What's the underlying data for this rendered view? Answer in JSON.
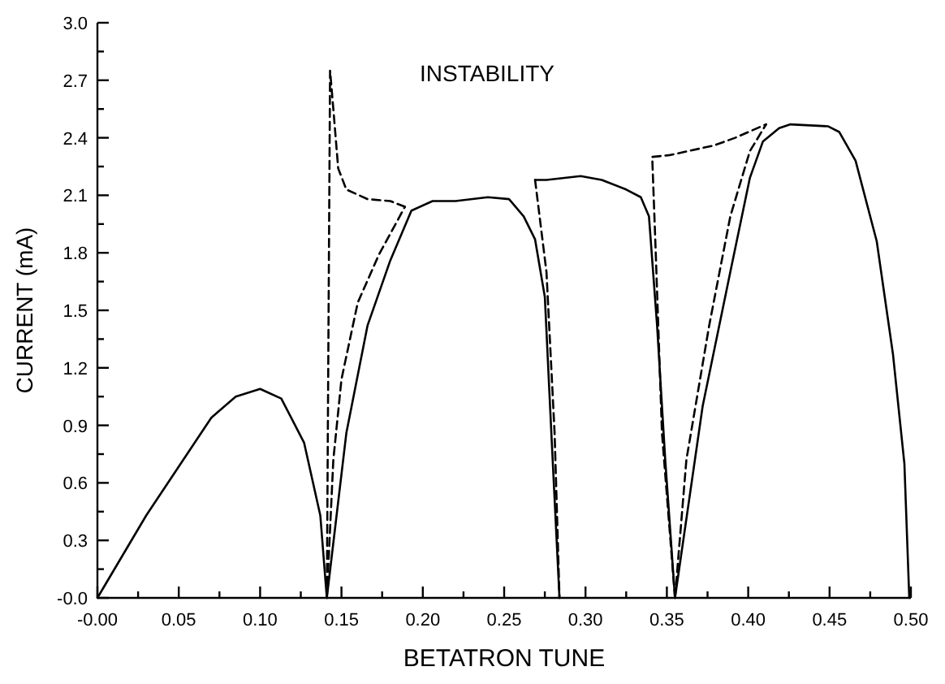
{
  "chart_data": {
    "type": "line",
    "title": "INSTABILITY",
    "xlabel": "BETATRON TUNE",
    "ylabel": "CURRENT (mA)",
    "xlim": [
      0,
      0.5
    ],
    "ylim": [
      0,
      3
    ],
    "xticks": [
      {
        "value": 0,
        "label": "-0.00"
      },
      {
        "value": 0.025,
        "label": null
      },
      {
        "value": 0.05,
        "label": "0.05"
      },
      {
        "value": 0.075,
        "label": null
      },
      {
        "value": 0.1,
        "label": "0.10"
      },
      {
        "value": 0.125,
        "label": null
      },
      {
        "value": 0.15,
        "label": "0.15"
      },
      {
        "value": 0.175,
        "label": null
      },
      {
        "value": 0.2,
        "label": "0.20"
      },
      {
        "value": 0.225,
        "label": null
      },
      {
        "value": 0.25,
        "label": "0.25"
      },
      {
        "value": 0.275,
        "label": null
      },
      {
        "value": 0.3,
        "label": "0.30"
      },
      {
        "value": 0.325,
        "label": null
      },
      {
        "value": 0.35,
        "label": "0.35"
      },
      {
        "value": 0.375,
        "label": null
      },
      {
        "value": 0.4,
        "label": "0.40"
      },
      {
        "value": 0.425,
        "label": null
      },
      {
        "value": 0.45,
        "label": "0.45"
      },
      {
        "value": 0.475,
        "label": null
      },
      {
        "value": 0.5,
        "label": "0.50"
      }
    ],
    "yticks": [
      {
        "value": 0,
        "label": "-0.0"
      },
      {
        "value": 0.15,
        "label": null
      },
      {
        "value": 0.3,
        "label": "0.3"
      },
      {
        "value": 0.45,
        "label": null
      },
      {
        "value": 0.6,
        "label": "0.6"
      },
      {
        "value": 0.75,
        "label": null
      },
      {
        "value": 0.9,
        "label": "0.9"
      },
      {
        "value": 1.05,
        "label": null
      },
      {
        "value": 1.2,
        "label": "1.2"
      },
      {
        "value": 1.35,
        "label": null
      },
      {
        "value": 1.5,
        "label": "1.5"
      },
      {
        "value": 1.65,
        "label": null
      },
      {
        "value": 1.8,
        "label": "1.8"
      },
      {
        "value": 1.95,
        "label": null
      },
      {
        "value": 2.1,
        "label": "2.1"
      },
      {
        "value": 2.25,
        "label": null
      },
      {
        "value": 2.4,
        "label": "2.4"
      },
      {
        "value": 2.55,
        "label": null
      },
      {
        "value": 2.7,
        "label": "2.7"
      },
      {
        "value": 2.85,
        "label": null
      },
      {
        "value": 3,
        "label": "3.0"
      }
    ],
    "series": [
      {
        "color": "#000000",
        "line_style": "solid",
        "x": [
          0,
          0.03,
          0.07,
          0.085,
          0.1,
          0.113,
          0.127,
          0.137,
          0.141,
          0.153,
          0.166,
          0.18,
          0.193,
          0.206,
          0.22,
          0.24,
          0.253,
          0.262,
          0.269,
          0.275,
          0.279,
          0.284
        ],
        "values": [
          0,
          0.43,
          0.94,
          1.05,
          1.09,
          1.04,
          0.81,
          0.43,
          0,
          0.86,
          1.42,
          1.76,
          2.02,
          2.07,
          2.07,
          2.09,
          2.08,
          1.99,
          1.87,
          1.57,
          0.86,
          0
        ]
      },
      {
        "color": "#000000",
        "line_style": "solid",
        "x": [
          0.269,
          0.276,
          0.297,
          0.31,
          0.325,
          0.334,
          0.339,
          0.344,
          0.349,
          0.355,
          0.372,
          0.389,
          0.401,
          0.409,
          0.419,
          0.426,
          0.449,
          0.456,
          0.466,
          0.479,
          0.489,
          0.496,
          0.499
        ],
        "values": [
          2.18,
          2.18,
          2.2,
          2.18,
          2.13,
          2.09,
          1.99,
          1.42,
          0.72,
          0,
          1.0,
          1.7,
          2.19,
          2.38,
          2.45,
          2.47,
          2.46,
          2.43,
          2.28,
          1.86,
          1.27,
          0.7,
          0
        ]
      },
      {
        "color": "#000000",
        "line_style": "dashed",
        "x": [
          0.141,
          0.143,
          0.145,
          0.148,
          0.153,
          0.166,
          0.18,
          0.189
        ],
        "values": [
          0,
          2.75,
          2.55,
          2.24,
          2.13,
          2.08,
          2.07,
          2.04
        ]
      },
      {
        "color": "#000000",
        "line_style": "dashed",
        "x": [
          0.141,
          0.145,
          0.15,
          0.16,
          0.173,
          0.189
        ],
        "values": [
          0,
          0.72,
          1.14,
          1.54,
          1.79,
          2.04
        ]
      },
      {
        "color": "#000000",
        "line_style": "dashed",
        "x": [
          0.269,
          0.276,
          0.281,
          0.284
        ],
        "values": [
          2.18,
          1.7,
          0.86,
          0
        ]
      },
      {
        "color": "#000000",
        "line_style": "dashed",
        "x": [
          0.355,
          0.347,
          0.343,
          0.341,
          0.352,
          0.379,
          0.392,
          0.411
        ],
        "values": [
          0,
          0.86,
          1.84,
          2.3,
          2.31,
          2.36,
          2.4,
          2.47
        ]
      },
      {
        "color": "#000000",
        "line_style": "dashed",
        "x": [
          0.355,
          0.362,
          0.376,
          0.389,
          0.401,
          0.411
        ],
        "values": [
          0,
          0.72,
          1.42,
          1.99,
          2.33,
          2.47
        ]
      }
    ]
  }
}
